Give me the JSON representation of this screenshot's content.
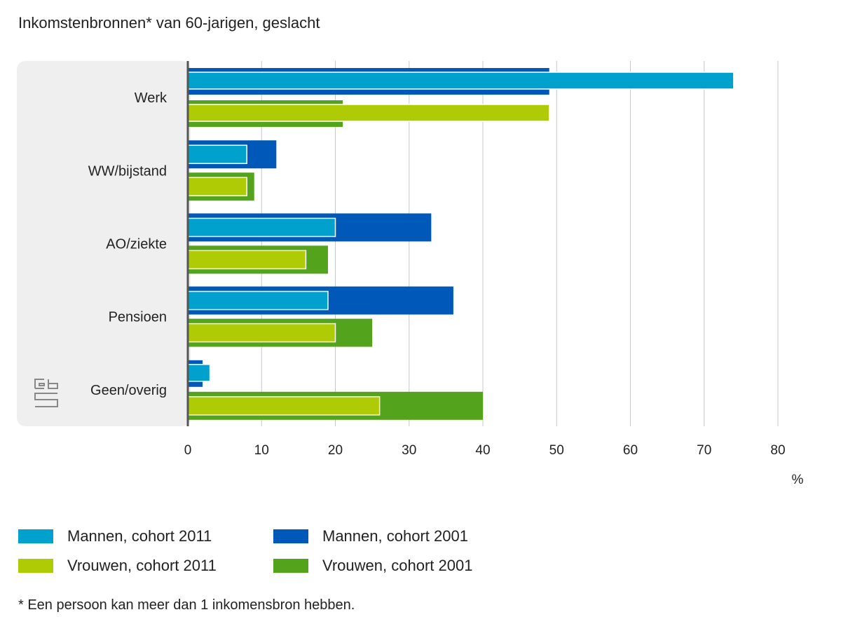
{
  "title": "Inkomstenbronnen* van 60-jarigen, geslacht",
  "footnote": "* Een persoon kan meer dan 1 inkomensbron hebben.",
  "logo_text": "cbs",
  "chart_data": {
    "type": "bar",
    "orientation": "horizontal",
    "title": "Inkomstenbronnen* van 60-jarigen, geslacht",
    "xlabel": "%",
    "ylabel": "",
    "xlim": [
      0,
      80
    ],
    "x_ticks": [
      "0",
      "10",
      "20",
      "30",
      "40",
      "50",
      "60",
      "70",
      "80"
    ],
    "categories": [
      "Werk",
      "WW/bijstand",
      "AO/ziekte",
      "Pensioen",
      "Geen/overig"
    ],
    "grid": "vertical",
    "legend_position": "bottom",
    "series": [
      {
        "name": "Mannen, cohort 2011",
        "color": "#00a1cd",
        "values": [
          74,
          8,
          20,
          19,
          3
        ]
      },
      {
        "name": "Mannen, cohort 2001",
        "color": "#0058b8",
        "values": [
          49,
          12,
          33,
          36,
          2
        ]
      },
      {
        "name": "Vrouwen, cohort 2011",
        "color": "#afcb05",
        "values": [
          49,
          8,
          16,
          20,
          26
        ]
      },
      {
        "name": "Vrouwen, cohort 2001",
        "color": "#53a31d",
        "values": [
          21,
          9,
          19,
          25,
          40
        ]
      }
    ]
  }
}
